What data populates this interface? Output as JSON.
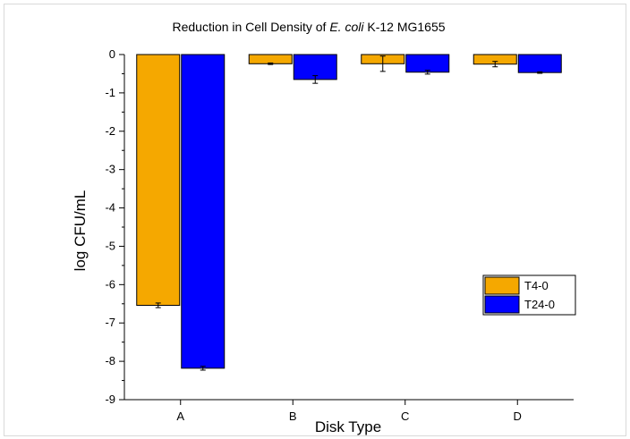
{
  "chart_data": {
    "type": "bar",
    "title": {
      "prefix": "Reduction in Cell Density of ",
      "italic": "E. coli",
      "suffix": " K-12 MG1655"
    },
    "xlabel": "Disk Type",
    "ylabel": "log CFU/mL",
    "categories": [
      "A",
      "B",
      "C",
      "D"
    ],
    "ylim": [
      -9,
      0
    ],
    "yticks": [
      0,
      -1,
      -2,
      -3,
      -4,
      -5,
      -6,
      -7,
      -8,
      -9
    ],
    "ytick_labels": [
      "0",
      "-1",
      "-2",
      "-3",
      "-4",
      "-5",
      "-6",
      "-7",
      "-8",
      "-9"
    ],
    "series": [
      {
        "name": "T4-0",
        "color": "#f5a800",
        "values": [
          -6.54,
          -0.24,
          -0.24,
          -0.25
        ],
        "errors": [
          0.06,
          0.02,
          0.2,
          0.07
        ]
      },
      {
        "name": "T24-0",
        "color": "#0000ff",
        "values": [
          -8.18,
          -0.65,
          -0.46,
          -0.47
        ],
        "errors": [
          0.05,
          0.1,
          0.05,
          0.02
        ]
      }
    ],
    "legend": "right"
  }
}
